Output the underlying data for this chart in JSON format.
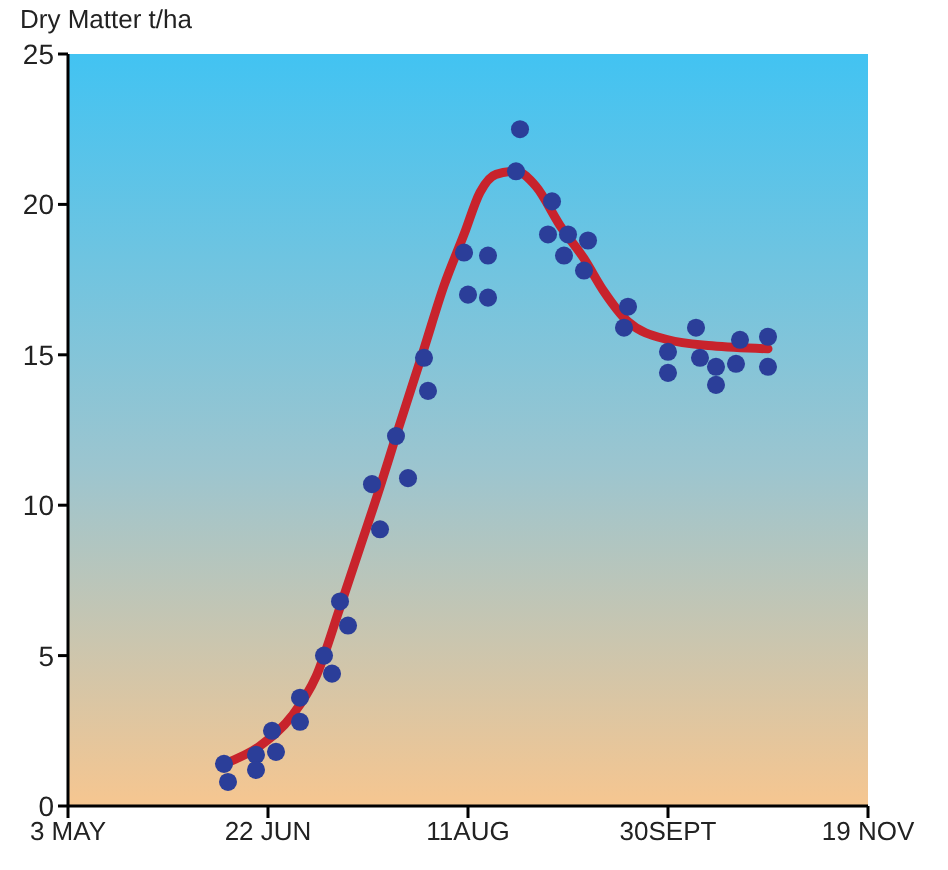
{
  "chart_data": {
    "type": "scatter",
    "ylabel": "Dry Matter t/ha",
    "xlim": [
      "--05-03",
      "--11-19"
    ],
    "xticks": [
      {
        "value": "--05-03",
        "label": "3 MAY"
      },
      {
        "value": "--06-22",
        "label": "22 JUN"
      },
      {
        "value": "--08-11",
        "label": "11AUG"
      },
      {
        "value": "--09-30",
        "label": "30SEPT"
      },
      {
        "value": "--11-19",
        "label": "19 NOV"
      }
    ],
    "ylim": [
      0,
      25
    ],
    "yticks": [
      0,
      5,
      10,
      15,
      20,
      25
    ],
    "series": [
      {
        "color": "#2b3e99",
        "marker": "circle",
        "x": [
          "--06-11",
          "--06-12",
          "--06-19",
          "--06-19",
          "--06-23",
          "--06-24",
          "--06-30",
          "--06-30",
          "--07-06",
          "--07-08",
          "--07-10",
          "--07-12",
          "--07-20",
          "--07-18",
          "--07-27",
          "--07-24",
          "--08-01",
          "--07-31",
          "--08-10",
          "--08-11",
          "--08-16",
          "--08-16",
          "--08-23",
          "--08-24",
          "--09-01",
          "--08-31",
          "--09-05",
          "--09-04",
          "--09-10",
          "--09-09",
          "--09-20",
          "--09-19",
          "--09-30",
          "--09-30",
          "--10-07",
          "--10-08",
          "--10-12",
          "--10-12",
          "--10-17",
          "--10-18",
          "--10-25",
          "--10-25"
        ],
        "values": [
          1.4,
          0.8,
          1.7,
          1.2,
          2.5,
          1.8,
          3.6,
          2.8,
          5.0,
          4.4,
          6.8,
          6.0,
          9.2,
          10.7,
          10.9,
          12.3,
          13.8,
          14.9,
          18.4,
          17.0,
          18.3,
          16.9,
          21.1,
          22.5,
          20.1,
          19.0,
          19.0,
          18.3,
          18.8,
          17.8,
          16.6,
          15.9,
          15.1,
          14.4,
          15.9,
          14.9,
          14.6,
          14.0,
          14.7,
          15.5,
          15.6,
          14.6
        ]
      },
      {
        "type": "line",
        "color": "#c8232c",
        "marker": "none",
        "x": [
          "--06-11",
          "--06-20",
          "--06-28",
          "--07-04",
          "--07-10",
          "--07-15",
          "--07-20",
          "--07-24",
          "--07-31",
          "--08-05",
          "--08-10",
          "--08-14",
          "--08-18",
          "--08-23",
          "--08-28",
          "--09-03",
          "--09-09",
          "--09-14",
          "--09-20",
          "--09-30",
          "--10-11",
          "--10-25"
        ],
        "values": [
          1.4,
          2.0,
          3.0,
          4.3,
          6.6,
          8.6,
          10.6,
          12.3,
          15.2,
          17.3,
          19.0,
          20.4,
          21.0,
          21.1,
          20.6,
          19.3,
          18.2,
          17.1,
          16.1,
          15.5,
          15.3,
          15.2
        ]
      }
    ]
  }
}
